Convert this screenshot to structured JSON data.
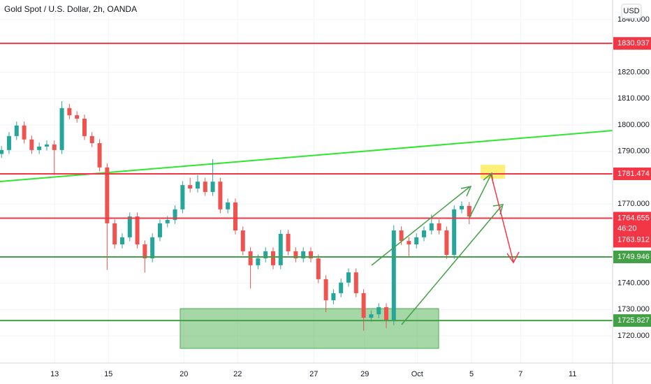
{
  "title": "Gold Spot / U.S. Dollar, 2h, OANDA",
  "currency_button": "USD",
  "chart_data": {
    "type": "candlestick",
    "up_color": "#26a69a",
    "down_color": "#ef5350",
    "xlim": [
      -0.2,
      81.0
    ],
    "xticks": [
      {
        "value": 7.04,
        "label": "13"
      },
      {
        "value": 14.17,
        "label": "15"
      },
      {
        "value": 24.17,
        "label": "20"
      },
      {
        "value": 31.3,
        "label": "22"
      },
      {
        "value": 41.4,
        "label": "27"
      },
      {
        "value": 48.15,
        "label": "29"
      },
      {
        "value": 55.1,
        "label": "Oct"
      },
      {
        "value": 62.3,
        "label": "5"
      },
      {
        "value": 68.8,
        "label": "7"
      },
      {
        "value": 75.7,
        "label": "11"
      }
    ],
    "ylim": [
      1709.7,
      1847.4
    ],
    "yticks": [
      {
        "value": 1720,
        "label": "1720.000"
      },
      {
        "value": 1730,
        "label": "1730.000"
      },
      {
        "value": 1740,
        "label": "1740.000"
      },
      {
        "value": 1770,
        "label": "1770.000"
      },
      {
        "value": 1790,
        "label": "1790.000"
      },
      {
        "value": 1800,
        "label": "1800.000"
      },
      {
        "value": 1810,
        "label": "1810.000"
      },
      {
        "value": 1820,
        "label": "1820.000"
      },
      {
        "value": 1840,
        "label": "1840.000"
      }
    ],
    "grid": true,
    "candles": [
      {
        "o": 1789.0,
        "h": 1792.0,
        "l": 1787.5,
        "c": 1790.5
      },
      {
        "o": 1790.5,
        "h": 1797.3,
        "l": 1789.0,
        "c": 1795.8
      },
      {
        "o": 1795.8,
        "h": 1801.3,
        "l": 1794.3,
        "c": 1799.8
      },
      {
        "o": 1799.8,
        "h": 1801.3,
        "l": 1793.0,
        "c": 1794.5
      },
      {
        "o": 1794.5,
        "h": 1796.0,
        "l": 1789.0,
        "c": 1790.5
      },
      {
        "o": 1790.5,
        "h": 1793.3,
        "l": 1789.0,
        "c": 1791.8
      },
      {
        "o": 1791.8,
        "h": 1794.1,
        "l": 1790.3,
        "c": 1792.6
      },
      {
        "o": 1792.6,
        "h": 1794.1,
        "l": 1781.0,
        "c": 1790.5
      },
      {
        "o": 1790.5,
        "h": 1809.0,
        "l": 1789.0,
        "c": 1806.4
      },
      {
        "o": 1806.4,
        "h": 1808.0,
        "l": 1802.2,
        "c": 1803.7
      },
      {
        "o": 1803.7,
        "h": 1805.2,
        "l": 1800.9,
        "c": 1802.4
      },
      {
        "o": 1802.4,
        "h": 1803.9,
        "l": 1794.3,
        "c": 1795.8
      },
      {
        "o": 1795.8,
        "h": 1797.3,
        "l": 1791.6,
        "c": 1793.1
      },
      {
        "o": 1793.1,
        "h": 1794.6,
        "l": 1782.4,
        "c": 1783.9
      },
      {
        "o": 1783.9,
        "h": 1785.4,
        "l": 1745.0,
        "c": 1762.7
      },
      {
        "o": 1762.7,
        "h": 1764.2,
        "l": 1753.2,
        "c": 1754.7
      },
      {
        "o": 1754.7,
        "h": 1758.9,
        "l": 1753.2,
        "c": 1757.4
      },
      {
        "o": 1757.4,
        "h": 1766.8,
        "l": 1755.9,
        "c": 1765.3
      },
      {
        "o": 1765.3,
        "h": 1766.8,
        "l": 1753.2,
        "c": 1754.7
      },
      {
        "o": 1754.7,
        "h": 1756.2,
        "l": 1744.0,
        "c": 1749.4
      },
      {
        "o": 1749.4,
        "h": 1758.9,
        "l": 1747.9,
        "c": 1757.4
      },
      {
        "o": 1757.4,
        "h": 1764.2,
        "l": 1755.9,
        "c": 1762.7
      },
      {
        "o": 1762.7,
        "h": 1765.5,
        "l": 1761.2,
        "c": 1764.0
      },
      {
        "o": 1764.0,
        "h": 1769.5,
        "l": 1762.5,
        "c": 1768.0
      },
      {
        "o": 1768.0,
        "h": 1778.7,
        "l": 1766.5,
        "c": 1777.2
      },
      {
        "o": 1777.2,
        "h": 1780.0,
        "l": 1774.4,
        "c": 1775.9
      },
      {
        "o": 1775.9,
        "h": 1781.0,
        "l": 1774.4,
        "c": 1778.5
      },
      {
        "o": 1778.5,
        "h": 1780.0,
        "l": 1773.1,
        "c": 1774.6
      },
      {
        "o": 1774.6,
        "h": 1787.0,
        "l": 1773.1,
        "c": 1778.5
      },
      {
        "o": 1778.5,
        "h": 1780.0,
        "l": 1766.5,
        "c": 1768.0
      },
      {
        "o": 1768.0,
        "h": 1772.1,
        "l": 1766.5,
        "c": 1770.6
      },
      {
        "o": 1770.6,
        "h": 1772.1,
        "l": 1758.5,
        "c": 1760.0
      },
      {
        "o": 1760.0,
        "h": 1761.5,
        "l": 1750.6,
        "c": 1752.1
      },
      {
        "o": 1752.1,
        "h": 1753.6,
        "l": 1738.0,
        "c": 1746.8
      },
      {
        "o": 1746.8,
        "h": 1750.9,
        "l": 1745.3,
        "c": 1749.4
      },
      {
        "o": 1749.4,
        "h": 1753.6,
        "l": 1747.9,
        "c": 1752.1
      },
      {
        "o": 1752.1,
        "h": 1753.6,
        "l": 1745.3,
        "c": 1746.8
      },
      {
        "o": 1746.8,
        "h": 1760.2,
        "l": 1745.3,
        "c": 1758.7
      },
      {
        "o": 1758.7,
        "h": 1760.2,
        "l": 1750.6,
        "c": 1752.1
      },
      {
        "o": 1752.1,
        "h": 1753.6,
        "l": 1747.9,
        "c": 1749.4
      },
      {
        "o": 1749.4,
        "h": 1753.6,
        "l": 1747.9,
        "c": 1752.1
      },
      {
        "o": 1752.1,
        "h": 1753.6,
        "l": 1747.9,
        "c": 1749.4
      },
      {
        "o": 1749.4,
        "h": 1750.9,
        "l": 1740.0,
        "c": 1741.5
      },
      {
        "o": 1741.5,
        "h": 1743.0,
        "l": 1729.0,
        "c": 1733.5
      },
      {
        "o": 1733.5,
        "h": 1737.7,
        "l": 1732.0,
        "c": 1736.2
      },
      {
        "o": 1736.2,
        "h": 1741.7,
        "l": 1734.7,
        "c": 1740.2
      },
      {
        "o": 1740.2,
        "h": 1745.6,
        "l": 1738.7,
        "c": 1744.1
      },
      {
        "o": 1744.1,
        "h": 1745.6,
        "l": 1734.7,
        "c": 1736.2
      },
      {
        "o": 1736.2,
        "h": 1737.7,
        "l": 1722.0,
        "c": 1726.9
      },
      {
        "o": 1726.9,
        "h": 1729.7,
        "l": 1725.4,
        "c": 1728.2
      },
      {
        "o": 1728.2,
        "h": 1732.4,
        "l": 1726.7,
        "c": 1730.9
      },
      {
        "o": 1730.9,
        "h": 1732.4,
        "l": 1723.0,
        "c": 1725.6
      },
      {
        "o": 1725.6,
        "h": 1762.0,
        "l": 1724.1,
        "c": 1760.0
      },
      {
        "o": 1760.0,
        "h": 1761.5,
        "l": 1754.5,
        "c": 1756.0
      },
      {
        "o": 1756.0,
        "h": 1757.5,
        "l": 1750.0,
        "c": 1754.7
      },
      {
        "o": 1754.7,
        "h": 1758.9,
        "l": 1753.2,
        "c": 1757.4
      },
      {
        "o": 1757.4,
        "h": 1761.5,
        "l": 1755.9,
        "c": 1760.0
      },
      {
        "o": 1760.0,
        "h": 1766.0,
        "l": 1758.5,
        "c": 1762.7
      },
      {
        "o": 1762.7,
        "h": 1764.2,
        "l": 1758.5,
        "c": 1760.0
      },
      {
        "o": 1760.0,
        "h": 1761.5,
        "l": 1749.2,
        "c": 1750.7
      },
      {
        "o": 1750.7,
        "h": 1769.5,
        "l": 1749.2,
        "c": 1768.0
      },
      {
        "o": 1768.0,
        "h": 1771.0,
        "l": 1766.5,
        "c": 1769.3
      },
      {
        "o": 1769.3,
        "h": 1770.8,
        "l": 1762.4,
        "c": 1765.3
      }
    ],
    "levels": [
      {
        "value": 1830.937,
        "color": "#f23645"
      },
      {
        "value": 1781.474,
        "color": "#f23645"
      },
      {
        "value": 1764.655,
        "color": "#f23645"
      },
      {
        "value": 1749.946,
        "color": "#43a047"
      },
      {
        "value": 1725.827,
        "color": "#43a047"
      }
    ],
    "countdown": "46:20",
    "last_price": 1763.912
  }
}
